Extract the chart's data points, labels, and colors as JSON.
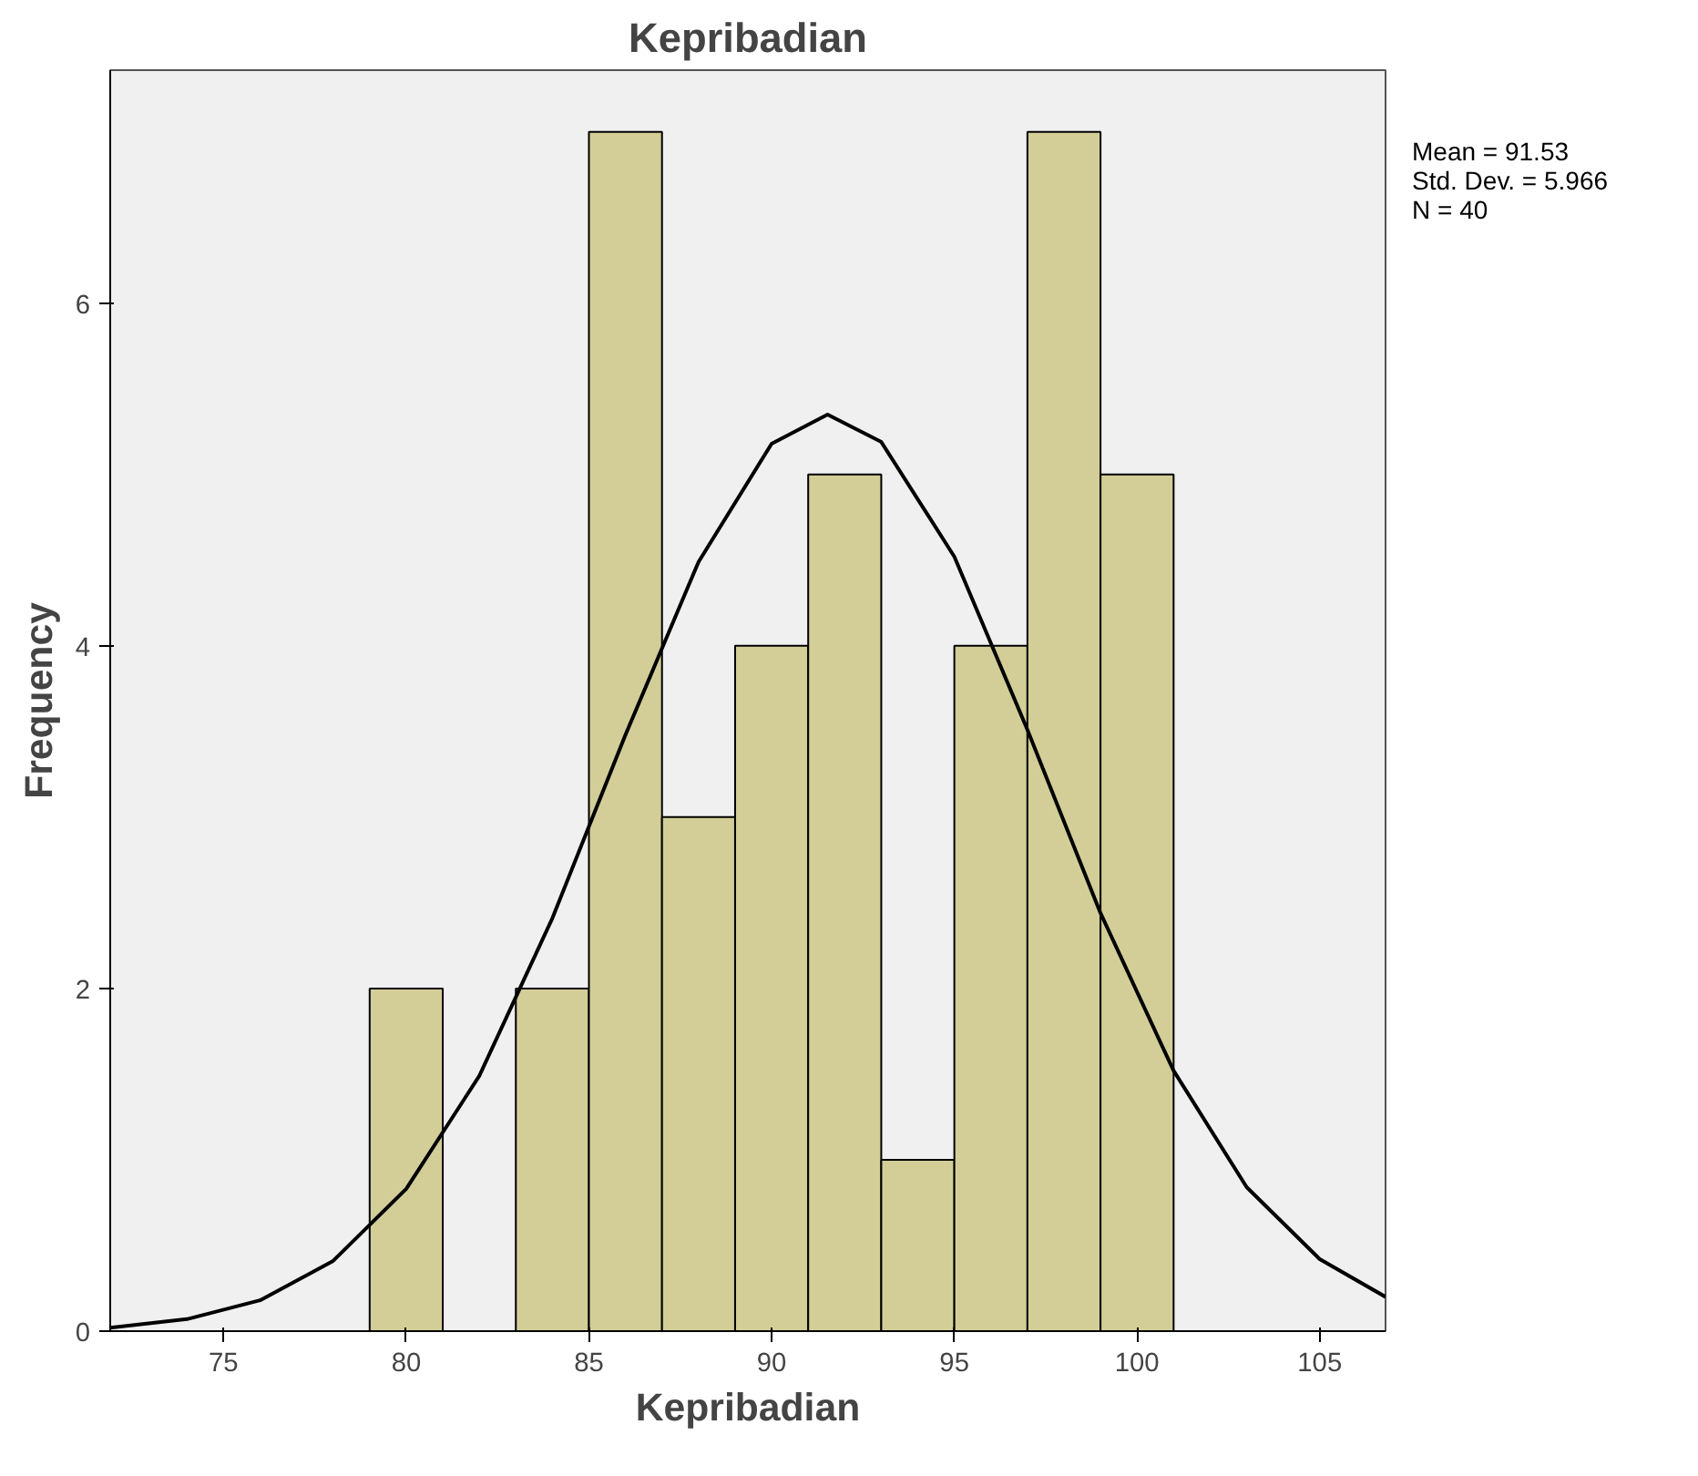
{
  "chart_data": {
    "type": "histogram",
    "title": "Kepribadian",
    "xlabel": "Kepribadian",
    "ylabel": "Frequency",
    "xlim": [
      71.9,
      106.8
    ],
    "ylim": [
      0,
      7.36
    ],
    "xticks": [
      75,
      80,
      85,
      90,
      95,
      100,
      105
    ],
    "yticks": [
      0,
      2,
      4,
      6
    ],
    "grid": false,
    "series": [
      {
        "color": "#d3ce97",
        "bins": [
          79,
          81,
          83,
          85,
          87,
          89,
          91,
          93,
          95,
          97,
          99,
          101
        ],
        "values": [
          2,
          0,
          2,
          7,
          3,
          4,
          5,
          1,
          4,
          7,
          5
        ]
      },
      {
        "type": "line",
        "color": "#000000",
        "x": [
          71.9,
          74,
          76,
          78,
          80,
          82,
          84,
          86,
          88,
          90,
          91.53,
          93,
          95,
          97,
          99,
          101,
          103,
          105,
          106.8
        ],
        "values": [
          0.02,
          0.07,
          0.18,
          0.41,
          0.83,
          1.49,
          2.41,
          3.48,
          4.49,
          5.18,
          5.35,
          5.19,
          4.52,
          3.51,
          2.44,
          1.52,
          0.84,
          0.42,
          0.2
        ]
      }
    ],
    "annotations": [
      "Mean = 91.53",
      "Std. Dev. = 5.966",
      "N = 40"
    ]
  }
}
